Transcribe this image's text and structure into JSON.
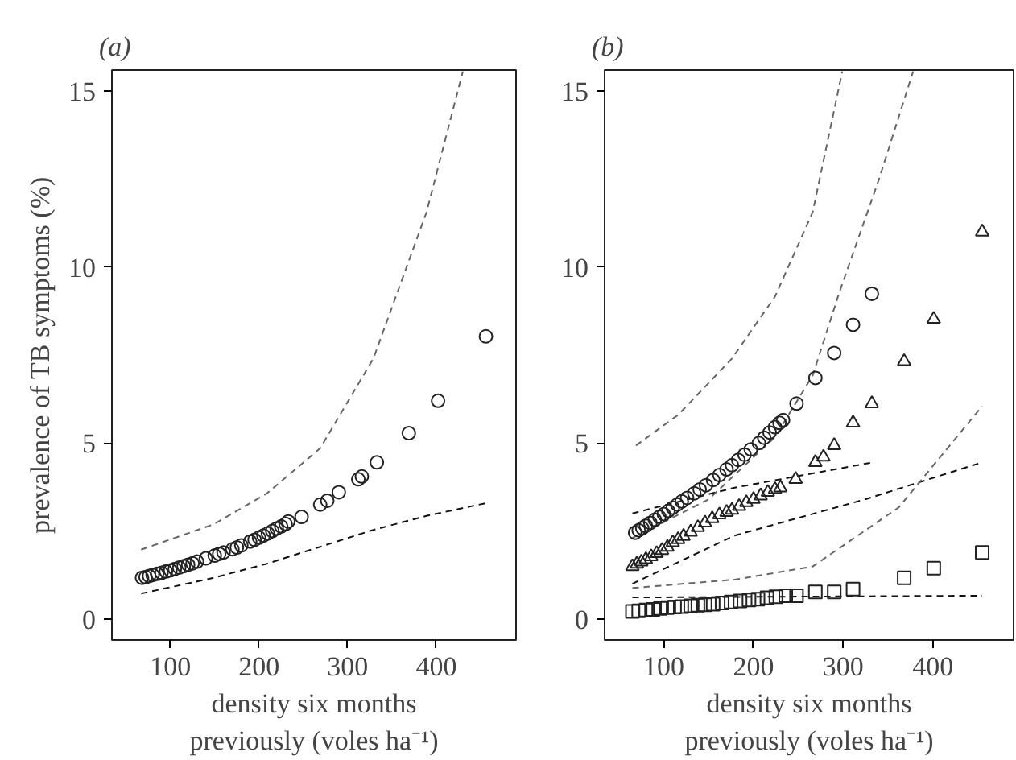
{
  "chart_data": [
    {
      "type": "scatter",
      "title": "(a)",
      "xlabel": "density six months\npreviously (voles ha⁻¹)",
      "ylabel": "prevalence of TB symptoms (%)",
      "xlim": [
        34,
        490
      ],
      "ylim": [
        -0.6,
        15.6
      ],
      "xticks": [
        100,
        200,
        300,
        400
      ],
      "yticks": [
        0,
        5,
        10,
        15
      ],
      "grid": false,
      "series": [
        {
          "marker": "circle",
          "color": "#222222",
          "x": [
            68,
            72,
            76,
            80,
            85,
            90,
            95,
            100,
            105,
            110,
            115,
            120,
            125,
            130,
            140,
            150,
            155,
            160,
            170,
            175,
            180,
            190,
            195,
            200,
            205,
            210,
            215,
            220,
            225,
            230,
            233,
            248,
            269,
            277,
            290,
            312,
            316,
            333,
            369,
            402,
            456
          ],
          "values": [
            1.17,
            1.19,
            1.22,
            1.25,
            1.28,
            1.31,
            1.35,
            1.38,
            1.42,
            1.46,
            1.5,
            1.54,
            1.58,
            1.63,
            1.72,
            1.8,
            1.85,
            1.89,
            1.98,
            2.03,
            2.09,
            2.2,
            2.25,
            2.31,
            2.37,
            2.43,
            2.5,
            2.57,
            2.63,
            2.7,
            2.77,
            2.9,
            3.25,
            3.36,
            3.6,
            3.97,
            4.05,
            4.45,
            5.28,
            6.2,
            8.03
          ]
        },
        {
          "type": "line",
          "line_style": "dashed",
          "marker": "none",
          "color": "#666666",
          "x": [
            67,
            149,
            209,
            269,
            329,
            389,
            430
          ],
          "values": [
            1.97,
            2.69,
            3.57,
            4.85,
            7.4,
            11.56,
            15.56
          ]
        },
        {
          "type": "line",
          "line_style": "dashed",
          "marker": "none",
          "color": "#111111",
          "x": [
            67,
            149,
            209,
            269,
            329,
            389,
            456
          ],
          "values": [
            0.72,
            1.17,
            1.57,
            2.05,
            2.53,
            2.93,
            3.29
          ]
        }
      ]
    },
    {
      "type": "scatter",
      "title": "(b)",
      "xlabel": "density six months\npreviously (voles ha⁻¹)",
      "xlim": [
        34,
        490
      ],
      "ylim": [
        -0.6,
        15.6
      ],
      "xticks": [
        100,
        200,
        300,
        400
      ],
      "yticks": [
        0,
        5,
        10,
        15
      ],
      "grid": false,
      "series": [
        {
          "type": "line",
          "line_style": "dashed",
          "marker": "none",
          "color": "#666666",
          "x": [
            69,
            116,
            176,
            224,
            266,
            299
          ],
          "values": [
            4.93,
            5.8,
            7.4,
            9.16,
            11.56,
            15.56
          ]
        },
        {
          "type": "line",
          "line_style": "dashed",
          "marker": "none",
          "color": "#111111",
          "x": [
            65,
            179,
            333
          ],
          "values": [
            3.0,
            3.73,
            4.45
          ]
        },
        {
          "type": "line",
          "line_style": "dashed",
          "marker": "none",
          "color": "#666666",
          "x": [
            65,
            150,
            224,
            266,
            296,
            340,
            378
          ],
          "values": [
            2.3,
            3.4,
            5.17,
            6.92,
            9.3,
            12.5,
            15.56
          ]
        },
        {
          "type": "line",
          "line_style": "dashed",
          "marker": "none",
          "color": "#111111",
          "x": [
            65,
            179,
            326,
            455
          ],
          "values": [
            1.0,
            2.37,
            3.41,
            4.45
          ]
        },
        {
          "type": "line",
          "line_style": "dashed",
          "marker": "none",
          "color": "#666666",
          "x": [
            65,
            180,
            266,
            362,
            455
          ],
          "values": [
            0.88,
            1.12,
            1.49,
            3.17,
            6.05
          ]
        },
        {
          "type": "line",
          "line_style": "dashed",
          "marker": "none",
          "color": "#111111",
          "x": [
            65,
            455
          ],
          "values": [
            0.61,
            0.66
          ]
        },
        {
          "marker": "circle",
          "color": "#222222",
          "x": [
            68,
            72,
            76,
            80,
            85,
            90,
            95,
            100,
            105,
            110,
            115,
            120,
            126,
            134,
            140,
            147,
            155,
            162,
            170,
            176,
            183,
            190,
            197,
            206,
            212,
            218,
            224,
            229,
            233,
            248,
            269,
            290,
            311,
            332
          ],
          "values": [
            2.45,
            2.52,
            2.58,
            2.65,
            2.73,
            2.82,
            2.9,
            2.98,
            3.07,
            3.16,
            3.25,
            3.34,
            3.44,
            3.57,
            3.68,
            3.8,
            3.95,
            4.09,
            4.25,
            4.37,
            4.52,
            4.67,
            4.82,
            5.0,
            5.15,
            5.3,
            5.45,
            5.57,
            5.65,
            6.12,
            6.85,
            7.56,
            8.36,
            9.24
          ]
        },
        {
          "marker": "triangle",
          "color": "#222222",
          "x": [
            65,
            70,
            75,
            80,
            86,
            92,
            98,
            104,
            110,
            116,
            122,
            130,
            138,
            146,
            154,
            162,
            170,
            176,
            184,
            192,
            200,
            208,
            216,
            224,
            230,
            247,
            269,
            278,
            290,
            311,
            332,
            368,
            401,
            455
          ],
          "values": [
            1.49,
            1.56,
            1.62,
            1.69,
            1.77,
            1.86,
            1.95,
            2.04,
            2.17,
            2.26,
            2.35,
            2.47,
            2.6,
            2.73,
            2.85,
            2.96,
            3.03,
            3.09,
            3.2,
            3.31,
            3.4,
            3.5,
            3.6,
            3.68,
            3.73,
            3.97,
            4.45,
            4.6,
            4.93,
            5.57,
            6.12,
            7.32,
            8.52,
            11.0
          ]
        },
        {
          "marker": "square",
          "color": "#222222",
          "x": [
            65,
            72,
            80,
            88,
            96,
            104,
            112,
            120,
            130,
            138,
            146,
            155,
            165,
            175,
            185,
            195,
            205,
            215,
            225,
            236,
            248,
            269,
            290,
            311,
            368,
            401,
            455
          ],
          "values": [
            0.21,
            0.23,
            0.25,
            0.27,
            0.3,
            0.32,
            0.34,
            0.35,
            0.37,
            0.39,
            0.4,
            0.42,
            0.45,
            0.48,
            0.51,
            0.54,
            0.56,
            0.6,
            0.63,
            0.66,
            0.66,
            0.77,
            0.77,
            0.85,
            1.17,
            1.44,
            1.89
          ]
        }
      ]
    }
  ]
}
